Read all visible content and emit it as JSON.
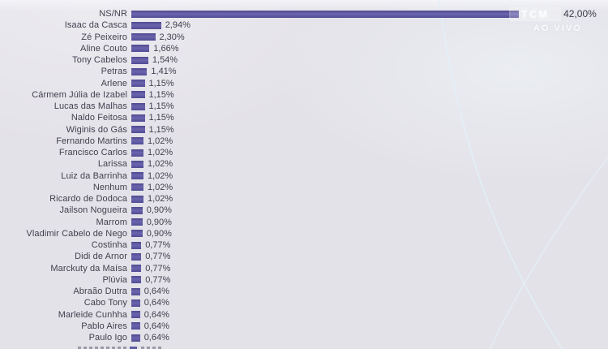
{
  "broadcast": {
    "logo_text": "TCM",
    "live_badge": "AO VIVO"
  },
  "colors": {
    "bar": "#605aa5",
    "background": "#e3e2e8",
    "text": "#41414f",
    "watermark": "rgba(255,255,255,0.78)"
  },
  "chart_data": {
    "type": "bar",
    "orientation": "horizontal",
    "title": "",
    "xlabel": "",
    "ylabel": "",
    "xlim": [
      0,
      42
    ],
    "grid": false,
    "value_format": "percent-comma",
    "categories": [
      "NS/NR",
      "Isaac da Casca",
      "Zé Peixeiro",
      "Aline Couto",
      "Tony Cabelos",
      "Petras",
      "Arlene",
      "Cármem Júlia de Izabel",
      "Lucas das Malhas",
      "Naldo Feitosa",
      "Wiginis do Gás",
      "Fernando Martins",
      "Francisco Carlos",
      "Larissa",
      "Luiz da Barrinha",
      "Nenhum",
      "Ricardo de Dodoca",
      "Jailson Nogueira",
      "Marrom",
      "Vladimir Cabelo de Nego",
      "Costinha",
      "Didi de Arnor",
      "Marckuty da Maísa",
      "Plúvia",
      "Abraão Dutra",
      "Cabo Tony",
      "Marleide Cunhha",
      "Pablo Aires",
      "Paulo Igo"
    ],
    "values": [
      42.0,
      2.94,
      2.3,
      1.66,
      1.54,
      1.41,
      1.15,
      1.15,
      1.15,
      1.15,
      1.15,
      1.02,
      1.02,
      1.02,
      1.02,
      1.02,
      1.02,
      0.9,
      0.9,
      0.9,
      0.77,
      0.77,
      0.77,
      0.77,
      0.64,
      0.64,
      0.64,
      0.64,
      0.64
    ],
    "value_labels": [
      "42,00%",
      "2,94%",
      "2,30%",
      "1,66%",
      "1,54%",
      "1,41%",
      "1,15%",
      "1,15%",
      "1,15%",
      "1,15%",
      "1,15%",
      "1,02%",
      "1,02%",
      "1,02%",
      "1,02%",
      "1,02%",
      "1,02%",
      "0,90%",
      "0,90%",
      "0,90%",
      "0,77%",
      "0,77%",
      "0,77%",
      "0,77%",
      "0,64%",
      "0,64%",
      "0,64%",
      "0,64%",
      "0,64%"
    ]
  }
}
